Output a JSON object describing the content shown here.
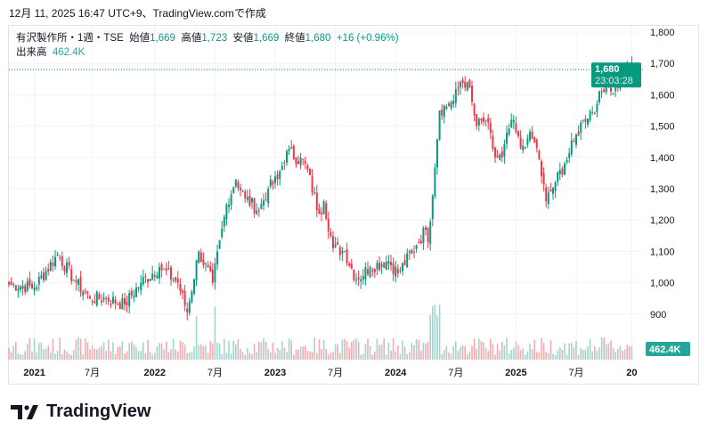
{
  "header": "12月 11, 2025 16:47 UTC+9、TradingView.comで作成",
  "legend": {
    "symbol": "有沢製作所・1週・TSE",
    "open_label": "始値",
    "open": "1,669",
    "high_label": "高値",
    "high": "1,723",
    "low_label": "安値",
    "low": "1,669",
    "close_label": "終値",
    "close": "1,680",
    "change": "+16 (+0.96%)",
    "volume_label": "出来高",
    "volume": "462.4K"
  },
  "last_price": {
    "price": "1,680",
    "countdown": "23:03:28"
  },
  "volume_badge": "462.4K",
  "brand": "TradingView",
  "colors": {
    "up": "#089981",
    "down": "#f23645",
    "vol_up": "#9fd6cf",
    "vol_down": "#f7a9b0"
  },
  "chart_data": {
    "type": "candlestick",
    "title": "有沢製作所・1週・TSE",
    "y_ticks": [
      "1,800",
      "1,700",
      "1,600",
      "1,500",
      "1,400",
      "1,300",
      "1,200",
      "1,100",
      "1,000",
      "900"
    ],
    "y_tick_values": [
      1800,
      1700,
      1600,
      1500,
      1400,
      1300,
      1200,
      1100,
      1000,
      900
    ],
    "ylim": [
      880,
      1800
    ],
    "x_ticks": [
      "2021",
      "7月",
      "2022",
      "7月",
      "2023",
      "7月",
      "2024",
      "7月",
      "2025",
      "7月",
      "20"
    ],
    "x_tick_weeks": [
      11,
      36,
      63,
      89,
      115,
      141,
      167,
      193,
      219,
      245,
      269
    ],
    "close_path_weeks": [
      0,
      11,
      21,
      29,
      35,
      42,
      50,
      57,
      65,
      73,
      77,
      82,
      88,
      94,
      98,
      102,
      108,
      112,
      116,
      120,
      128,
      134,
      136,
      140,
      145,
      150,
      156,
      164,
      168,
      176,
      180,
      181,
      186,
      192,
      195,
      198,
      202,
      206,
      210,
      213,
      217,
      221,
      224,
      226,
      228,
      232,
      236,
      240,
      244,
      248,
      254,
      258,
      260,
      269
    ],
    "close_path": [
      995,
      985,
      1090,
      1000,
      950,
      950,
      930,
      1000,
      1050,
      1000,
      905,
      1100,
      1000,
      1250,
      1330,
      1270,
      1230,
      1300,
      1330,
      1420,
      1380,
      1220,
      1260,
      1110,
      1100,
      1010,
      1050,
      1070,
      1030,
      1120,
      1170,
      1130,
      1550,
      1580,
      1640,
      1640,
      1500,
      1520,
      1400,
      1400,
      1520,
      1430,
      1460,
      1460,
      1430,
      1260,
      1320,
      1380,
      1450,
      1520,
      1570,
      1650,
      1610,
      1680
    ]
  }
}
